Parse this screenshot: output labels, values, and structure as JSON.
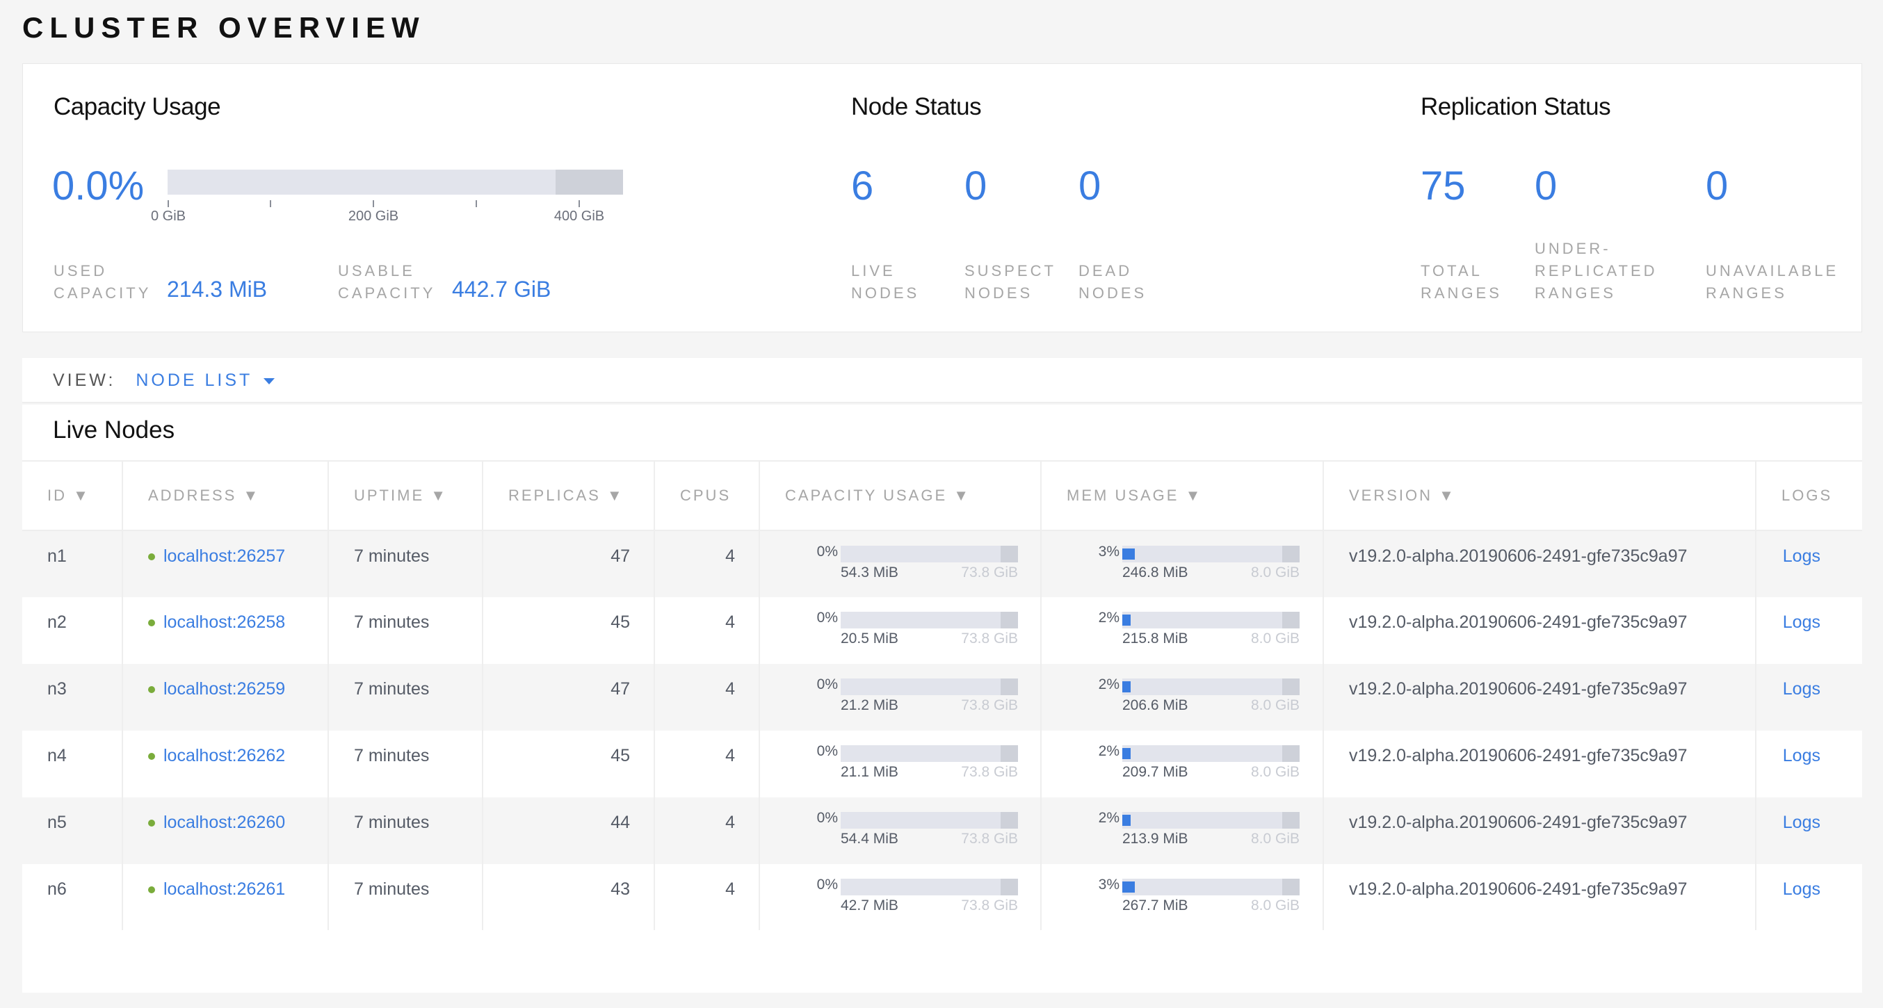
{
  "page_title": "CLUSTER OVERVIEW",
  "capacity": {
    "title": "Capacity Usage",
    "percent": "0.0%",
    "ticks": [
      "0 GiB",
      "200 GiB",
      "400 GiB"
    ],
    "used_label_1": "USED",
    "used_label_2": "CAPACITY",
    "used_value": "214.3 MiB",
    "usable_label_1": "USABLE",
    "usable_label_2": "CAPACITY",
    "usable_value": "442.7 GiB"
  },
  "node_status": {
    "title": "Node Status",
    "live": "6",
    "live_l1": "LIVE",
    "live_l2": "NODES",
    "suspect": "0",
    "suspect_l1": "SUSPECT",
    "suspect_l2": "NODES",
    "dead": "0",
    "dead_l1": "DEAD",
    "dead_l2": "NODES"
  },
  "replication": {
    "title": "Replication Status",
    "total": "75",
    "total_l1": "TOTAL",
    "total_l2": "RANGES",
    "under": "0",
    "under_l0": "UNDER-",
    "under_l1": "REPLICATED",
    "under_l2": "RANGES",
    "unavail": "0",
    "unavail_l1": "UNAVAILABLE",
    "unavail_l2": "RANGES"
  },
  "view": {
    "label": "VIEW:",
    "value": "NODE LIST"
  },
  "live_nodes_title": "Live Nodes",
  "columns": [
    "ID ▼",
    "ADDRESS ▼",
    "UPTIME ▼",
    "REPLICAS ▼",
    "CPUS",
    "CAPACITY USAGE ▼",
    "MEM USAGE ▼",
    "VERSION ▼",
    "LOGS"
  ],
  "colors": {
    "accent": "#3a7de1",
    "live": "#7aac3b"
  },
  "nodes": [
    {
      "id": "n1",
      "address": "localhost:26257",
      "uptime": "7 minutes",
      "replicas": "47",
      "cpus": "4",
      "cap_pct": "0%",
      "cap_used": "54.3 MiB",
      "cap_total": "73.8 GiB",
      "mem_pct": "3%",
      "mem_used": "246.8 MiB",
      "mem_total": "8.0 GiB",
      "version": "v19.2.0-alpha.20190606-2491-gfe735c9a97",
      "logs": "Logs"
    },
    {
      "id": "n2",
      "address": "localhost:26258",
      "uptime": "7 minutes",
      "replicas": "45",
      "cpus": "4",
      "cap_pct": "0%",
      "cap_used": "20.5 MiB",
      "cap_total": "73.8 GiB",
      "mem_pct": "2%",
      "mem_used": "215.8 MiB",
      "mem_total": "8.0 GiB",
      "version": "v19.2.0-alpha.20190606-2491-gfe735c9a97",
      "logs": "Logs"
    },
    {
      "id": "n3",
      "address": "localhost:26259",
      "uptime": "7 minutes",
      "replicas": "47",
      "cpus": "4",
      "cap_pct": "0%",
      "cap_used": "21.2 MiB",
      "cap_total": "73.8 GiB",
      "mem_pct": "2%",
      "mem_used": "206.6 MiB",
      "mem_total": "8.0 GiB",
      "version": "v19.2.0-alpha.20190606-2491-gfe735c9a97",
      "logs": "Logs"
    },
    {
      "id": "n4",
      "address": "localhost:26262",
      "uptime": "7 minutes",
      "replicas": "45",
      "cpus": "4",
      "cap_pct": "0%",
      "cap_used": "21.1 MiB",
      "cap_total": "73.8 GiB",
      "mem_pct": "2%",
      "mem_used": "209.7 MiB",
      "mem_total": "8.0 GiB",
      "version": "v19.2.0-alpha.20190606-2491-gfe735c9a97",
      "logs": "Logs"
    },
    {
      "id": "n5",
      "address": "localhost:26260",
      "uptime": "7 minutes",
      "replicas": "44",
      "cpus": "4",
      "cap_pct": "0%",
      "cap_used": "54.4 MiB",
      "cap_total": "73.8 GiB",
      "mem_pct": "2%",
      "mem_used": "213.9 MiB",
      "mem_total": "8.0 GiB",
      "version": "v19.2.0-alpha.20190606-2491-gfe735c9a97",
      "logs": "Logs"
    },
    {
      "id": "n6",
      "address": "localhost:26261",
      "uptime": "7 minutes",
      "replicas": "43",
      "cpus": "4",
      "cap_pct": "0%",
      "cap_used": "42.7 MiB",
      "cap_total": "73.8 GiB",
      "mem_pct": "3%",
      "mem_used": "267.7 MiB",
      "mem_total": "8.0 GiB",
      "version": "v19.2.0-alpha.20190606-2491-gfe735c9a97",
      "logs": "Logs"
    }
  ]
}
